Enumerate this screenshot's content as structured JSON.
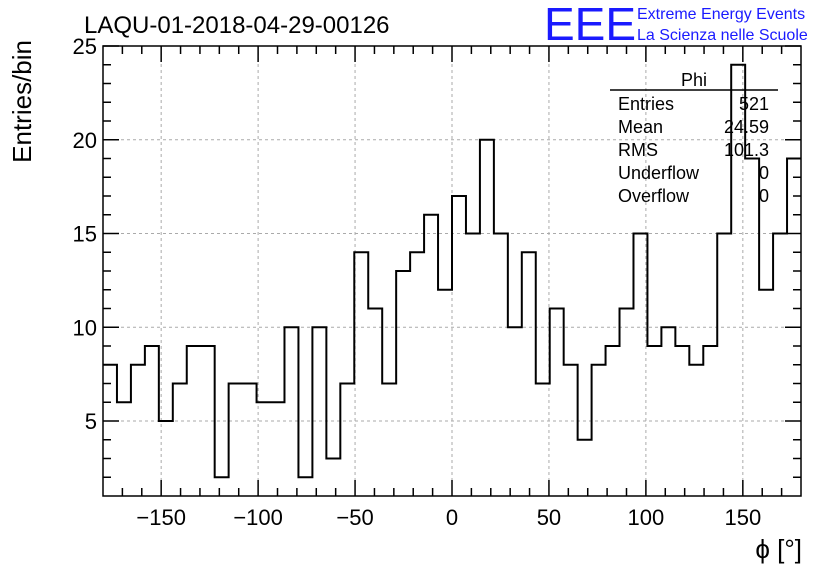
{
  "chart_data": {
    "type": "histogram",
    "title": "LAQU-01-2018-04-29-00126",
    "xlabel": "ϕ [°]",
    "ylabel": "Entries/bin",
    "xlim": [
      -180,
      180
    ],
    "ylim": [
      1,
      25
    ],
    "bin_width": 7.2,
    "x_ticks": [
      -150,
      -100,
      -50,
      0,
      50,
      100,
      150
    ],
    "x_tick_labels": [
      "−150",
      "−100",
      "−50",
      "0",
      "50",
      "100",
      "150"
    ],
    "y_ticks": [
      5,
      10,
      15,
      20,
      25
    ],
    "y_tick_labels": [
      "5",
      "10",
      "15",
      "20",
      "25"
    ],
    "grid": true,
    "values": [
      8,
      6,
      8,
      9,
      5,
      7,
      9,
      9,
      2,
      7,
      7,
      6,
      6,
      10,
      2,
      10,
      3,
      7,
      14,
      11,
      7,
      13,
      14,
      16,
      12,
      17,
      15,
      20,
      15,
      10,
      14,
      7,
      11,
      8,
      4,
      8,
      9,
      11,
      15,
      9,
      10,
      9,
      8,
      9,
      15,
      24,
      19,
      12,
      15,
      19
    ],
    "stats": {
      "name": "Phi",
      "rows": [
        {
          "label": "Entries",
          "value": "521"
        },
        {
          "label": "Mean",
          "value": "24.59"
        },
        {
          "label": "RMS",
          "value": "101.3"
        },
        {
          "label": "Underflow",
          "value": "0"
        },
        {
          "label": "Overflow",
          "value": "0"
        }
      ]
    }
  },
  "logo": {
    "text": "EEE",
    "line1": "Extreme Energy Events",
    "line2": "La Scienza nelle Scuole",
    "color": "#1a1aff"
  }
}
